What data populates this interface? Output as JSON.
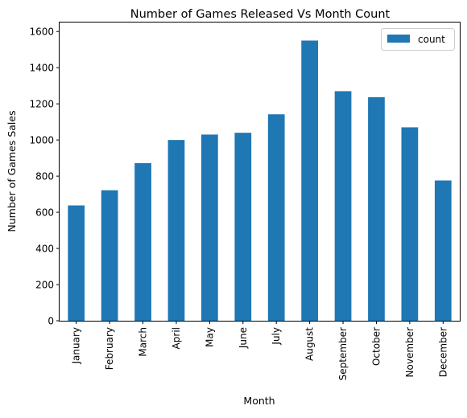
{
  "chart_data": {
    "type": "bar",
    "title": "Number of Games Released Vs Month Count",
    "xlabel": "Month",
    "ylabel": "Number of Games Sales",
    "categories": [
      "January",
      "February",
      "March",
      "April",
      "May",
      "June",
      "July",
      "August",
      "September",
      "October",
      "November",
      "December"
    ],
    "series": [
      {
        "name": "count",
        "color": "#1f77b4",
        "values": [
          638,
          722,
          872,
          1000,
          1030,
          1040,
          1142,
          1550,
          1270,
          1237,
          1070,
          776
        ]
      }
    ],
    "ylim": [
      0,
      1650
    ],
    "yticks": [
      0,
      200,
      400,
      600,
      800,
      1000,
      1200,
      1400,
      1600
    ],
    "grid": false,
    "legend_position": "top-right"
  }
}
